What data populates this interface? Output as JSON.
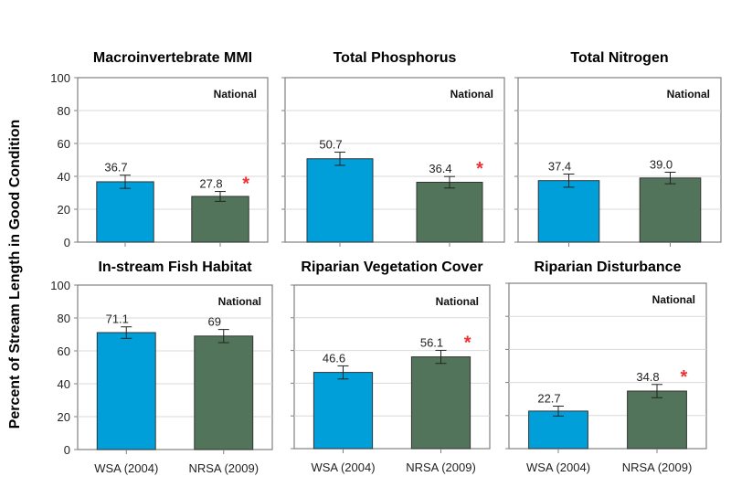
{
  "chart_data": [
    {
      "type": "bar",
      "title": "Macroinvertebrate MMI",
      "annotation": "National",
      "categories": [
        "WSA (2004)",
        "NRSA (2009)"
      ],
      "values": [
        36.7,
        27.8
      ],
      "labels": [
        "36.7",
        "27.8"
      ],
      "errors": [
        4,
        3
      ],
      "significant": [
        false,
        true
      ],
      "ylim": [
        0,
        100
      ],
      "yticks": [
        0,
        20,
        40,
        60,
        80,
        100
      ]
    },
    {
      "type": "bar",
      "title": "Total Phosphorus",
      "annotation": "National",
      "categories": [
        "WSA (2004)",
        "NRSA (2009)"
      ],
      "values": [
        50.7,
        36.4
      ],
      "labels": [
        "50.7",
        "36.4"
      ],
      "errors": [
        4,
        3.5
      ],
      "significant": [
        false,
        true
      ],
      "ylim": [
        0,
        100
      ],
      "yticks": [
        0,
        20,
        40,
        60,
        80,
        100
      ]
    },
    {
      "type": "bar",
      "title": "Total Nitrogen",
      "annotation": "National",
      "categories": [
        "WSA (2004)",
        "NRSA (2009)"
      ],
      "values": [
        37.4,
        39.0
      ],
      "labels": [
        "37.4",
        "39.0"
      ],
      "errors": [
        4,
        3.5
      ],
      "significant": [
        false,
        false
      ],
      "ylim": [
        0,
        100
      ],
      "yticks": [
        0,
        20,
        40,
        60,
        80,
        100
      ]
    },
    {
      "type": "bar",
      "title": "In-stream Fish Habitat",
      "annotation": "National",
      "categories": [
        "WSA (2004)",
        "NRSA (2009)"
      ],
      "values": [
        71.1,
        69
      ],
      "labels": [
        "71.1",
        "69"
      ],
      "errors": [
        3.5,
        4
      ],
      "significant": [
        false,
        false
      ],
      "ylim": [
        0,
        100
      ],
      "yticks": [
        0,
        20,
        40,
        60,
        80,
        100
      ]
    },
    {
      "type": "bar",
      "title": "Riparian Vegetation Cover",
      "annotation": "National",
      "categories": [
        "WSA (2004)",
        "NRSA (2009)"
      ],
      "values": [
        46.6,
        56.1
      ],
      "labels": [
        "46.6",
        "56.1"
      ],
      "errors": [
        4,
        4
      ],
      "significant": [
        false,
        true
      ],
      "ylim": [
        0,
        100
      ],
      "yticks": [
        0,
        20,
        40,
        60,
        80,
        100
      ]
    },
    {
      "type": "bar",
      "title": "Riparian Disturbance",
      "annotation": "National",
      "categories": [
        "WSA (2004)",
        "NRSA (2009)"
      ],
      "values": [
        22.7,
        34.8
      ],
      "labels": [
        "22.7",
        "34.8"
      ],
      "errors": [
        3,
        4
      ],
      "significant": [
        false,
        true
      ],
      "ylim": [
        0,
        100
      ],
      "yticks": [
        0,
        20,
        40,
        60,
        80,
        100
      ]
    }
  ],
  "ylabel": "Percent of Stream Length in Good Condition",
  "significance_marker": "*",
  "colors": {
    "wsa": "#009fd9",
    "nrsa": "#51745a",
    "star": "#f03030",
    "grid": "#d9d9d9",
    "axis": "#808080"
  }
}
